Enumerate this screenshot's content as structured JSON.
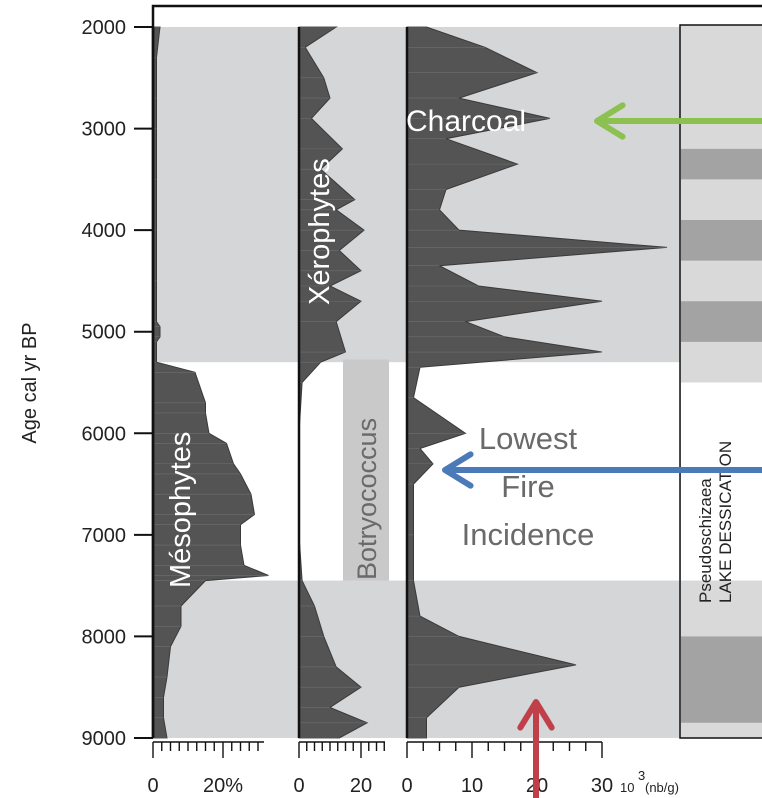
{
  "chart_data": {
    "type": "area",
    "y_axis": {
      "label": "Age cal yr BP",
      "ticks": [
        2000,
        3000,
        4000,
        5000,
        6000,
        7000,
        8000,
        9000
      ],
      "range": [
        2000,
        9000
      ],
      "direction": "downward"
    },
    "shaded_intervals": [
      {
        "from": 2000,
        "to": 5300
      },
      {
        "from": 7450,
        "to": 9000
      }
    ],
    "panels": [
      {
        "name": "Mésophytes",
        "xlim": [
          0,
          29
        ],
        "x_tick_labels": [
          "0",
          "20%"
        ],
        "x_tick_values": [
          0,
          20
        ],
        "profile": [
          [
            2000,
            2.0
          ],
          [
            2300,
            1.0
          ],
          [
            2700,
            1.0
          ],
          [
            3000,
            1.0
          ],
          [
            3500,
            1.0
          ],
          [
            4000,
            1.0
          ],
          [
            4500,
            1.0
          ],
          [
            4900,
            1.0
          ],
          [
            4950,
            2.0
          ],
          [
            5050,
            2.0
          ],
          [
            5100,
            1.0
          ],
          [
            5300,
            1.0
          ],
          [
            5400,
            12.0
          ],
          [
            5700,
            15.0
          ],
          [
            5800,
            15.0
          ],
          [
            6000,
            16.0
          ],
          [
            6100,
            21.0
          ],
          [
            6300,
            23.0
          ],
          [
            6400,
            25.0
          ],
          [
            6600,
            28.0
          ],
          [
            6800,
            29.0
          ],
          [
            6900,
            25.0
          ],
          [
            7100,
            25.0
          ],
          [
            7300,
            26.0
          ],
          [
            7400,
            33.0
          ],
          [
            7450,
            15.0
          ],
          [
            7700,
            8.0
          ],
          [
            7900,
            8.0
          ],
          [
            8100,
            5.0
          ],
          [
            8400,
            4.0
          ],
          [
            8600,
            3.0
          ],
          [
            8800,
            3.0
          ],
          [
            9000,
            4.0
          ]
        ]
      },
      {
        "name": "Xérophytes",
        "xlim": [
          0,
          25
        ],
        "x_tick_labels": [
          "0",
          "20"
        ],
        "x_tick_values": [
          0,
          20
        ],
        "profile": [
          [
            2000,
            12
          ],
          [
            2200,
            2
          ],
          [
            2500,
            8
          ],
          [
            2700,
            10
          ],
          [
            2900,
            4
          ],
          [
            3200,
            14
          ],
          [
            3400,
            7
          ],
          [
            3700,
            18
          ],
          [
            3800,
            12
          ],
          [
            4000,
            21
          ],
          [
            4200,
            13
          ],
          [
            4400,
            20
          ],
          [
            4550,
            10
          ],
          [
            4700,
            20
          ],
          [
            4900,
            12
          ],
          [
            5200,
            15
          ],
          [
            5300,
            7
          ],
          [
            5500,
            1
          ],
          [
            6000,
            0
          ],
          [
            6500,
            0
          ],
          [
            7000,
            0
          ],
          [
            7450,
            1
          ],
          [
            7700,
            5
          ],
          [
            8000,
            8
          ],
          [
            8300,
            12
          ],
          [
            8500,
            20
          ],
          [
            8700,
            10
          ],
          [
            8850,
            22
          ],
          [
            9000,
            13
          ]
        ]
      },
      {
        "name": "Charcoal",
        "units": "10³ (nb/g)",
        "xlim": [
          0,
          30
        ],
        "x_tick_labels": [
          "0",
          "10",
          "20",
          "30"
        ],
        "x_tick_values": [
          0,
          10,
          20,
          30
        ],
        "profile": [
          [
            2000,
            3
          ],
          [
            2200,
            12
          ],
          [
            2450,
            20
          ],
          [
            2700,
            8
          ],
          [
            2900,
            22
          ],
          [
            3100,
            6
          ],
          [
            3350,
            17
          ],
          [
            3600,
            6
          ],
          [
            3800,
            5
          ],
          [
            4000,
            8
          ],
          [
            4170,
            40
          ],
          [
            4350,
            5
          ],
          [
            4550,
            11
          ],
          [
            4700,
            30
          ],
          [
            4900,
            9
          ],
          [
            5050,
            15
          ],
          [
            5200,
            30
          ],
          [
            5350,
            2
          ],
          [
            5650,
            1
          ],
          [
            6000,
            9
          ],
          [
            6150,
            2
          ],
          [
            6300,
            4
          ],
          [
            6500,
            1
          ],
          [
            7000,
            1
          ],
          [
            7450,
            1
          ],
          [
            7800,
            2
          ],
          [
            8000,
            8
          ],
          [
            8280,
            26
          ],
          [
            8500,
            8
          ],
          [
            8800,
            3
          ],
          [
            9000,
            3
          ]
        ]
      }
    ],
    "strip": {
      "title_lines": [
        "Pseudoschizaea",
        "LAKE DESSICATION"
      ],
      "bands": [
        [
          3200,
          3500
        ],
        [
          3900,
          4300
        ],
        [
          4700,
          5100
        ],
        [
          8000,
          8850
        ]
      ]
    },
    "annotations": [
      {
        "text": "Botryococcus",
        "from": 5500,
        "to": 7450
      },
      {
        "text_lines": [
          "Lowest",
          "Fire",
          "Incidence"
        ]
      }
    ],
    "arrows": [
      {
        "color": "#8cc152",
        "points_to": "Charcoal peak 2900"
      },
      {
        "color": "#4a7ab8",
        "points_to": "Charcoal minimum 6300"
      },
      {
        "color": "#c0404a",
        "points_to": "Charcoal peak 8280"
      }
    ]
  }
}
